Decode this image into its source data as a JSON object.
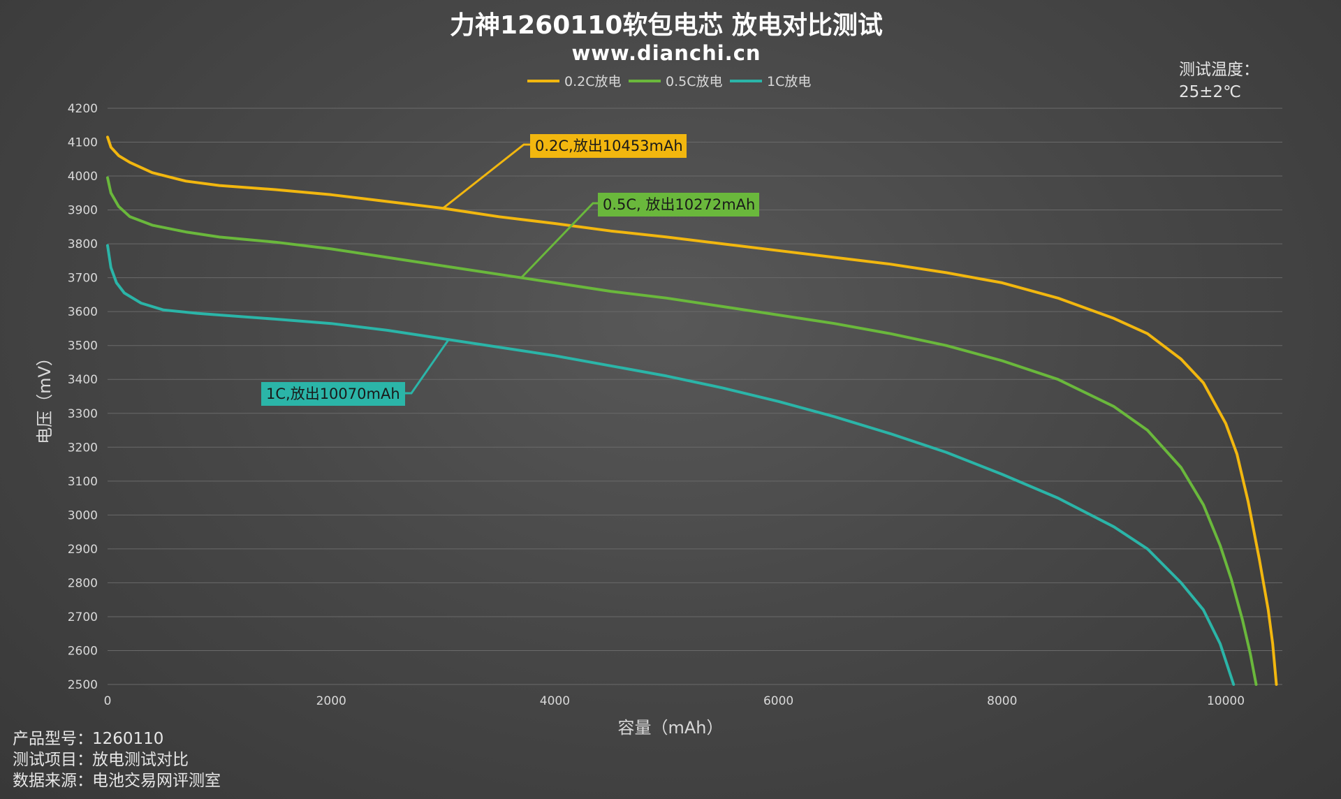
{
  "title": "力神1260110软包电芯 放电对比测试",
  "subtitle": "www.dianchi.cn",
  "temperature": {
    "label": "测试温度：",
    "value": "25±2℃"
  },
  "info": [
    {
      "label": "产品型号：",
      "value": "1260110"
    },
    {
      "label": "测试项目：",
      "value": "放电测试对比"
    },
    {
      "label": "数据来源：",
      "value": "电池交易网评测室"
    }
  ],
  "chart_data": {
    "type": "line",
    "xlabel": "容量（mAh）",
    "ylabel": "电压（mV）",
    "xlim": [
      0,
      10500
    ],
    "ylim": [
      2500,
      4200
    ],
    "x_ticks": [
      0,
      2000,
      4000,
      6000,
      8000,
      10000
    ],
    "y_ticks": [
      2500,
      2600,
      2700,
      2800,
      2900,
      3000,
      3100,
      3200,
      3300,
      3400,
      3500,
      3600,
      3700,
      3800,
      3900,
      4000,
      4100,
      4200
    ],
    "grid": true,
    "legend_position": "top-center",
    "series": [
      {
        "name": "0.2C放电",
        "color": "#f2b70f",
        "callout": "0.2C,放出10453mAh",
        "points": [
          [
            0,
            4115
          ],
          [
            30,
            4085
          ],
          [
            100,
            4060
          ],
          [
            200,
            4040
          ],
          [
            400,
            4010
          ],
          [
            700,
            3985
          ],
          [
            1000,
            3972
          ],
          [
            1500,
            3960
          ],
          [
            2000,
            3945
          ],
          [
            2500,
            3925
          ],
          [
            3000,
            3905
          ],
          [
            3500,
            3880
          ],
          [
            4000,
            3860
          ],
          [
            4500,
            3838
          ],
          [
            5000,
            3820
          ],
          [
            5500,
            3800
          ],
          [
            6000,
            3780
          ],
          [
            6500,
            3760
          ],
          [
            7000,
            3740
          ],
          [
            7500,
            3715
          ],
          [
            8000,
            3685
          ],
          [
            8500,
            3640
          ],
          [
            9000,
            3580
          ],
          [
            9300,
            3535
          ],
          [
            9600,
            3460
          ],
          [
            9800,
            3390
          ],
          [
            10000,
            3270
          ],
          [
            10100,
            3180
          ],
          [
            10200,
            3040
          ],
          [
            10300,
            2870
          ],
          [
            10380,
            2720
          ],
          [
            10420,
            2620
          ],
          [
            10453,
            2500
          ]
        ]
      },
      {
        "name": "0.5C放电",
        "color": "#6ab83c",
        "callout": "0.5C, 放出10272mAh",
        "points": [
          [
            0,
            3995
          ],
          [
            30,
            3950
          ],
          [
            100,
            3910
          ],
          [
            200,
            3880
          ],
          [
            400,
            3855
          ],
          [
            700,
            3835
          ],
          [
            1000,
            3820
          ],
          [
            1500,
            3805
          ],
          [
            2000,
            3785
          ],
          [
            2500,
            3760
          ],
          [
            3000,
            3735
          ],
          [
            3500,
            3710
          ],
          [
            4000,
            3685
          ],
          [
            4500,
            3660
          ],
          [
            5000,
            3640
          ],
          [
            5500,
            3615
          ],
          [
            6000,
            3590
          ],
          [
            6500,
            3565
          ],
          [
            7000,
            3535
          ],
          [
            7500,
            3500
          ],
          [
            8000,
            3455
          ],
          [
            8500,
            3400
          ],
          [
            9000,
            3320
          ],
          [
            9300,
            3250
          ],
          [
            9600,
            3140
          ],
          [
            9800,
            3030
          ],
          [
            9950,
            2910
          ],
          [
            10050,
            2810
          ],
          [
            10150,
            2690
          ],
          [
            10220,
            2590
          ],
          [
            10272,
            2500
          ]
        ]
      },
      {
        "name": "1C放电",
        "color": "#2bb5a8",
        "callout": "1C,放出10070mAh",
        "points": [
          [
            0,
            3795
          ],
          [
            30,
            3730
          ],
          [
            80,
            3685
          ],
          [
            150,
            3655
          ],
          [
            300,
            3625
          ],
          [
            500,
            3605
          ],
          [
            800,
            3595
          ],
          [
            1000,
            3590
          ],
          [
            1500,
            3578
          ],
          [
            2000,
            3565
          ],
          [
            2500,
            3545
          ],
          [
            3000,
            3520
          ],
          [
            3500,
            3495
          ],
          [
            4000,
            3470
          ],
          [
            4500,
            3440
          ],
          [
            5000,
            3410
          ],
          [
            5500,
            3375
          ],
          [
            6000,
            3335
          ],
          [
            6500,
            3290
          ],
          [
            7000,
            3240
          ],
          [
            7500,
            3185
          ],
          [
            8000,
            3120
          ],
          [
            8500,
            3050
          ],
          [
            9000,
            2965
          ],
          [
            9300,
            2900
          ],
          [
            9600,
            2800
          ],
          [
            9800,
            2720
          ],
          [
            9950,
            2620
          ],
          [
            10070,
            2500
          ]
        ]
      }
    ]
  }
}
